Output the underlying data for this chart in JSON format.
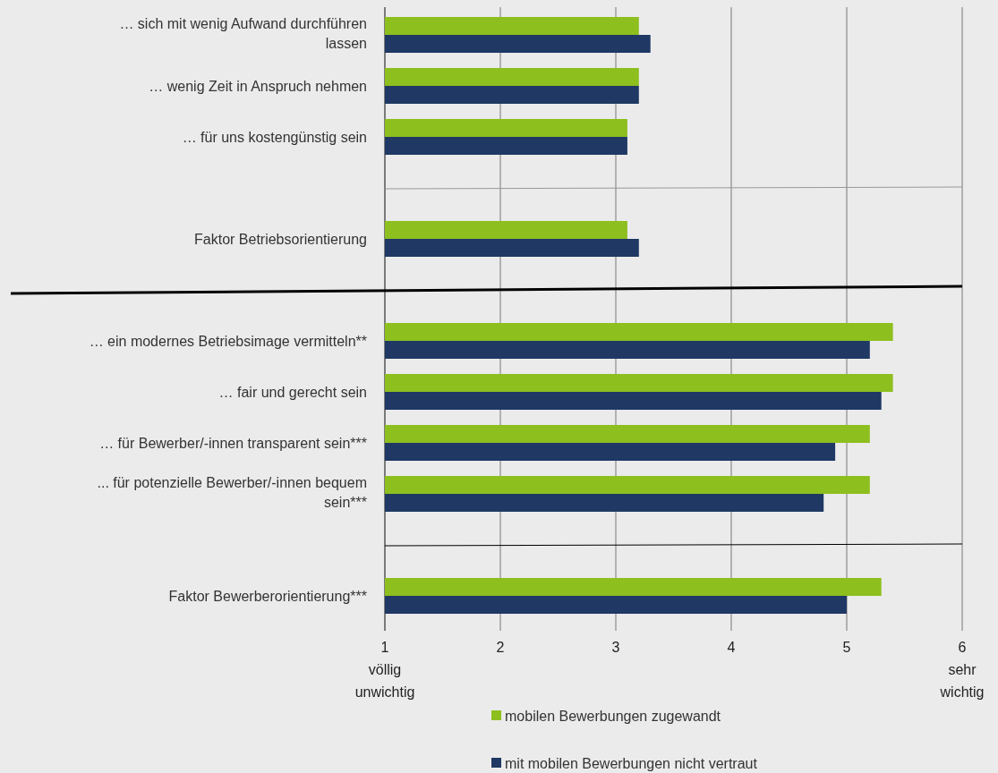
{
  "chart_data": {
    "type": "bar",
    "orientation": "horizontal",
    "categories": [
      "… sich mit wenig Aufwand durchführen lassen",
      "… wenig Zeit in Anspruch nehmen",
      "… für uns kostengünstig sein",
      "Faktor Betriebsorientierung",
      "… ein modernes Betriebsimage vermitteln**",
      "… fair und gerecht sein",
      "… für Bewerber/-innen transparent sein***",
      "... für potenzielle Bewerber/-innen bequem sein***",
      "Faktor Bewerberorientierung***"
    ],
    "series": [
      {
        "name": "mobilen Bewerbungen zugewandt",
        "color": "#8dbf1e",
        "values": [
          3.2,
          3.2,
          3.1,
          3.1,
          5.4,
          5.4,
          5.2,
          5.2,
          5.3
        ]
      },
      {
        "name": "mit mobilen Bewerbungen nicht vertraut",
        "color": "#1f3864",
        "values": [
          3.3,
          3.2,
          3.1,
          3.2,
          5.2,
          5.3,
          4.9,
          4.8,
          5.0
        ]
      }
    ],
    "xlim": [
      1,
      6
    ],
    "xticks": [
      {
        "value": 1,
        "label": "1\nvöllig\nunwichtig"
      },
      2,
      3,
      4,
      5,
      {
        "value": 6,
        "label": "6\nsehr\nwichtig"
      }
    ],
    "grid": "x",
    "legend": "bottom"
  }
}
